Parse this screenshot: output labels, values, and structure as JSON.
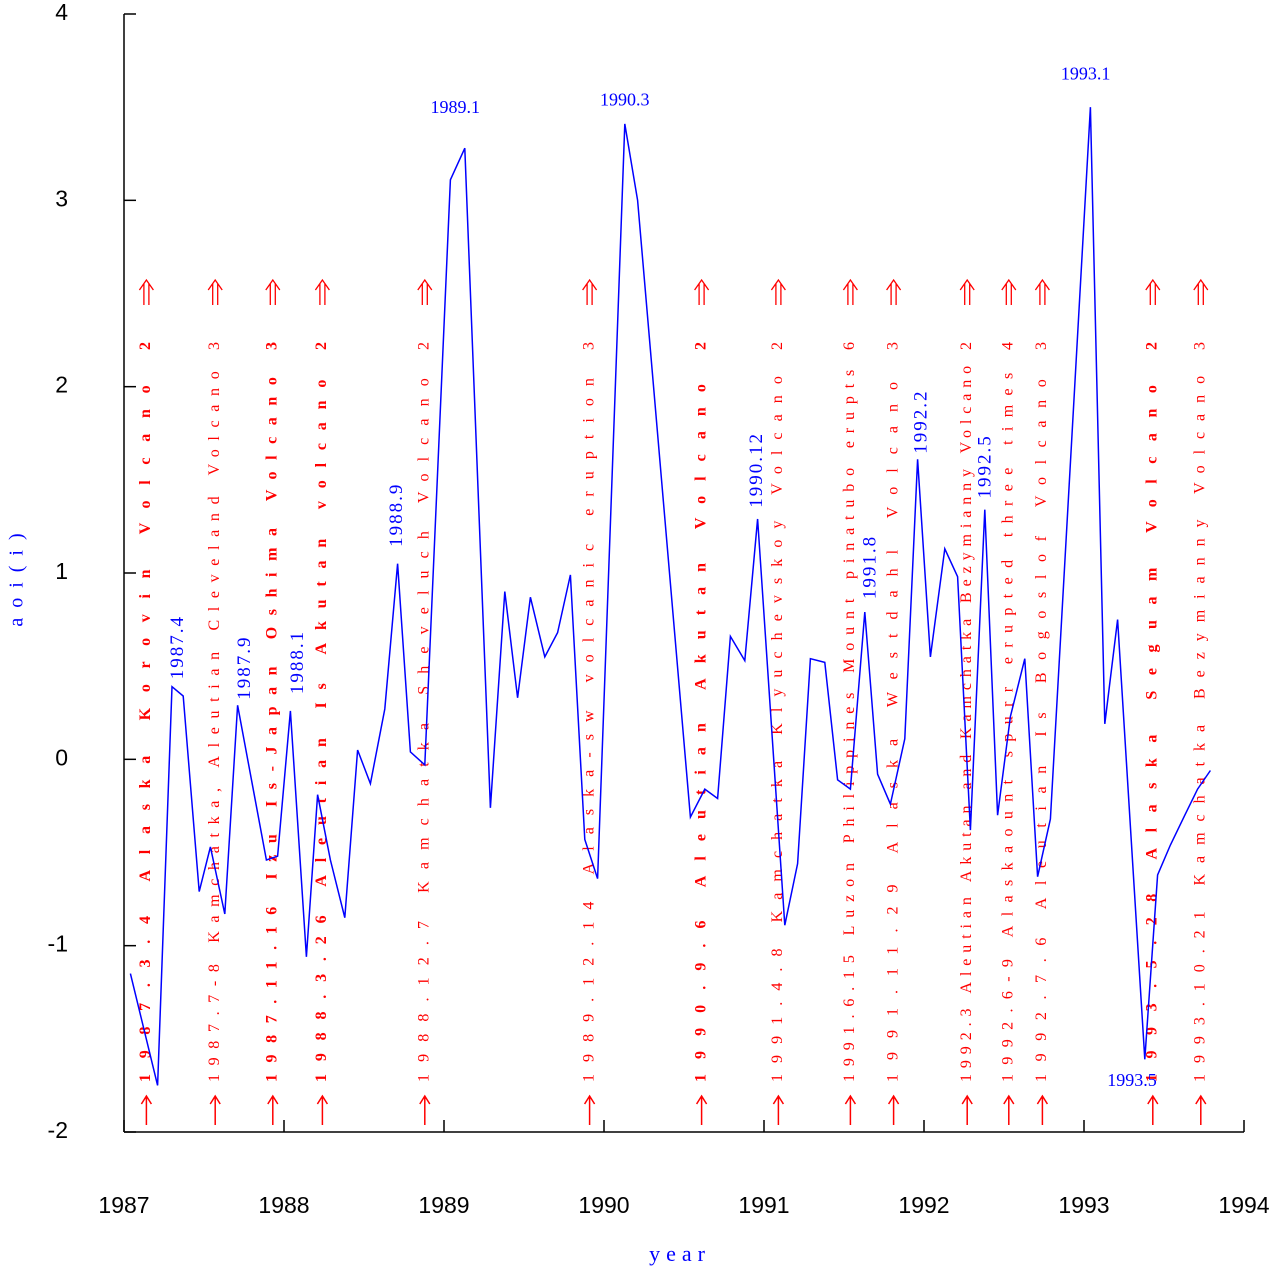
{
  "chart_data": {
    "type": "line",
    "xlabel": "year",
    "ylabel": "aoi(i)",
    "color": "#0000ff",
    "annotation_color": "#ff0000",
    "xlim": [
      1987,
      1994
    ],
    "xticks": [
      1987,
      1988,
      1989,
      1990,
      1991,
      1992,
      1993,
      1994
    ],
    "ylim": [
      -2,
      4
    ],
    "yticks": [
      -2,
      -1,
      0,
      1,
      2,
      3,
      4
    ],
    "x": [
      1987.04,
      1987.21,
      1987.3,
      1987.37,
      1987.47,
      1987.54,
      1987.63,
      1987.71,
      1987.89,
      1987.96,
      1988.04,
      1988.14,
      1988.21,
      1988.29,
      1988.38,
      1988.46,
      1988.54,
      1988.63,
      1988.71,
      1988.79,
      1988.88,
      1989.04,
      1989.13,
      1989.29,
      1989.38,
      1989.46,
      1989.54,
      1989.63,
      1989.71,
      1989.79,
      1989.88,
      1989.96,
      1990.13,
      1990.21,
      1990.54,
      1990.63,
      1990.71,
      1990.79,
      1990.88,
      1990.96,
      1991.13,
      1991.21,
      1991.29,
      1991.38,
      1991.46,
      1991.54,
      1991.63,
      1991.71,
      1991.79,
      1991.88,
      1991.96,
      1992.04,
      1992.13,
      1992.21,
      1992.29,
      1992.38,
      1992.46,
      1992.54,
      1992.63,
      1992.71,
      1992.79,
      1993.04,
      1993.13,
      1993.21,
      1993.38,
      1993.46,
      1993.54,
      1993.63,
      1993.71,
      1993.79
    ],
    "values": [
      -1.15,
      -1.75,
      0.39,
      0.34,
      -0.71,
      -0.47,
      -0.83,
      0.29,
      -0.54,
      -0.52,
      0.26,
      -1.06,
      -0.19,
      -0.54,
      -0.85,
      0.05,
      -0.13,
      0.27,
      1.05,
      0.04,
      -0.03,
      3.11,
      3.28,
      -0.26,
      0.9,
      0.33,
      0.87,
      0.55,
      0.68,
      0.99,
      -0.43,
      -0.64,
      3.41,
      3.0,
      -0.31,
      -0.16,
      -0.21,
      0.66,
      0.53,
      1.29,
      -0.89,
      -0.56,
      0.54,
      0.52,
      -0.11,
      -0.16,
      0.79,
      -0.08,
      -0.24,
      0.11,
      1.61,
      0.55,
      1.13,
      0.98,
      -0.38,
      1.34,
      -0.3,
      0.23,
      0.54,
      -0.63,
      -0.32,
      3.5,
      0.19,
      0.75,
      -1.61,
      -0.62,
      -0.46,
      -0.3,
      -0.16,
      -0.06
    ],
    "peak_labels": [
      {
        "text": "1987.4",
        "x": 1987.34,
        "y": 0.43,
        "vertical": true
      },
      {
        "text": "1987.9",
        "x": 1987.76,
        "y": 0.32,
        "vertical": true
      },
      {
        "text": "1988.1",
        "x": 1988.09,
        "y": 0.35,
        "vertical": true
      },
      {
        "text": "1988.9",
        "x": 1988.71,
        "y": 1.14,
        "vertical": true
      },
      {
        "text": "1989.1",
        "x": 1989.07,
        "y": 3.49,
        "vertical": false
      },
      {
        "text": "1990.3",
        "x": 1990.13,
        "y": 3.53,
        "vertical": false
      },
      {
        "text": "1990.12",
        "x": 1990.96,
        "y": 1.35,
        "vertical": true
      },
      {
        "text": "1991.8",
        "x": 1991.67,
        "y": 0.86,
        "vertical": true
      },
      {
        "text": "1992.2",
        "x": 1991.99,
        "y": 1.64,
        "vertical": true
      },
      {
        "text": "1992.5",
        "x": 1992.39,
        "y": 1.4,
        "vertical": true
      },
      {
        "text": "1993.1",
        "x": 1993.01,
        "y": 3.67,
        "vertical": false
      },
      {
        "text": "1993.5",
        "x": 1993.3,
        "y": -1.73,
        "vertical": false
      }
    ],
    "events": [
      {
        "text": "1987.3.4 Alaska Korovin Volcano 2",
        "x": 1987.14,
        "bold": true
      },
      {
        "text": "1987.7-8 Kamchatka, Aleutian Cleveland Volcano 3",
        "x": 1987.57,
        "bold": false
      },
      {
        "text": "1987.11.16 Izu Is-Japan Oshima Volcano 3",
        "x": 1987.93,
        "bold": true
      },
      {
        "text": "1988.3.26 Aleutian Is Akutan volcano 2",
        "x": 1988.24,
        "bold": true
      },
      {
        "text": "1988.12.7 Kamchatka Sheveluch Volcano 2",
        "x": 1988.88,
        "bold": false
      },
      {
        "text": "1989.12.14 Alaska-sw volcanic eruption 3",
        "x": 1989.91,
        "bold": false
      },
      {
        "text": "1990.9.6 Aleutian Akutan Volcano 2",
        "x": 1990.61,
        "bold": true
      },
      {
        "text": "1991.4.8 Kamchatka Klyuchevskoy Volcano 2",
        "x": 1991.09,
        "bold": false
      },
      {
        "text": "1991.6.15 Luzon Philippines Mount pinatubo erupts 6",
        "x": 1991.54,
        "bold": false
      },
      {
        "text": "1991.11.29 Alaska Westdahl Volcano 3",
        "x": 1991.81,
        "bold": false
      },
      {
        "text": "1992.3 Aleutian Akutan and Kamchatka Bezymianny Volcano 2",
        "x": 1992.27,
        "bold": false
      },
      {
        "text": "1992.6-9 Alaskaount spurr erupted three times 4",
        "x": 1992.53,
        "bold": false
      },
      {
        "text": "1992.7.6 Aleutian Is Bogoslof Volcano 3",
        "x": 1992.74,
        "bold": false
      },
      {
        "text": "1993.5.28 Alaska Seguam Volcano 2",
        "x": 1993.43,
        "bold": true
      },
      {
        "text": "1993.10.21 Kamchatka Bezymianny Volcano 3",
        "x": 1993.73,
        "bold": false
      }
    ]
  }
}
